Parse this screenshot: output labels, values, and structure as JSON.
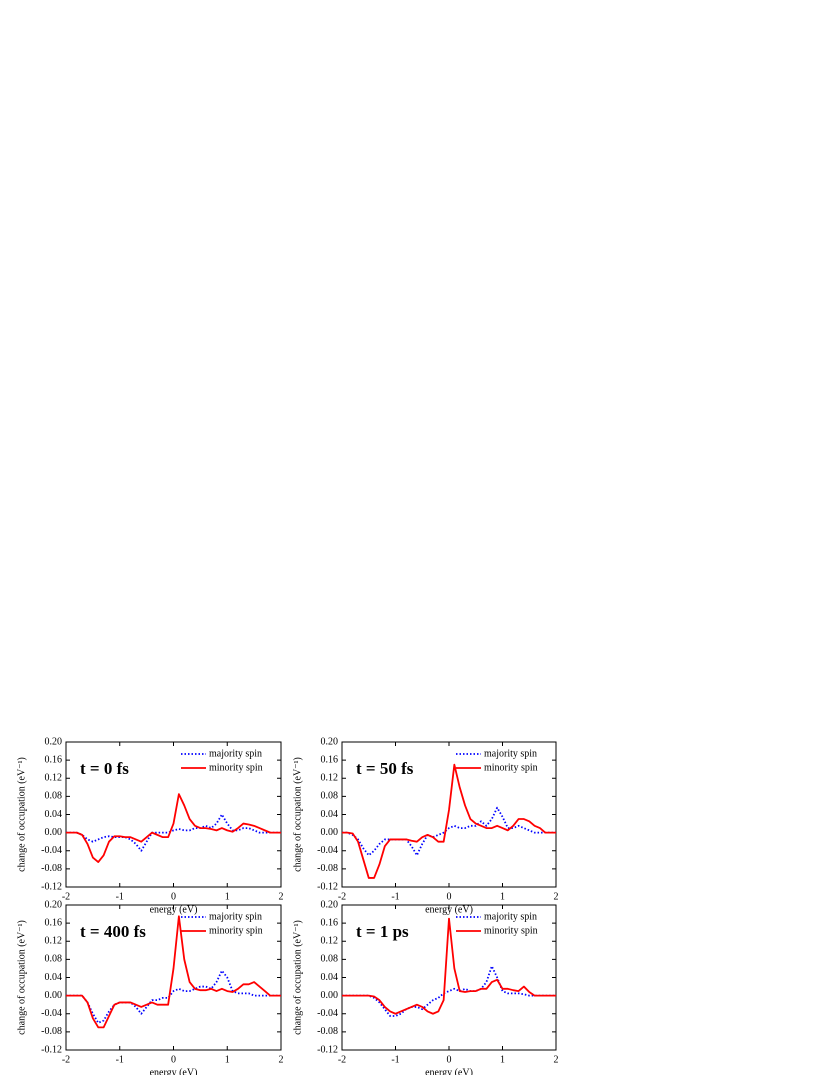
{
  "chart_data": [
    {
      "type": "line",
      "title": "t = 0 fs",
      "x_label": "energy (eV)",
      "y_label": "change of occupation (eV⁻¹)",
      "x": [
        -2,
        -1.9,
        -1.8,
        -1.7,
        -1.6,
        -1.5,
        -1.4,
        -1.3,
        -1.2,
        -1.1,
        -1,
        -0.9,
        -0.8,
        -0.7,
        -0.6,
        -0.5,
        -0.4,
        -0.3,
        -0.2,
        -0.1,
        0,
        0.1,
        0.2,
        0.3,
        0.4,
        0.5,
        0.6,
        0.7,
        0.8,
        0.9,
        1,
        1.1,
        1.2,
        1.3,
        1.4,
        1.5,
        1.6,
        1.7,
        1.8,
        1.9,
        2
      ],
      "series": [
        {
          "name": "majority spin",
          "color": "#0000ff",
          "linestyle": "dotted",
          "values": [
            0,
            0,
            0,
            -0.005,
            -0.015,
            -0.02,
            -0.015,
            -0.01,
            -0.008,
            -0.01,
            -0.01,
            -0.01,
            -0.015,
            -0.025,
            -0.04,
            -0.02,
            0,
            0,
            0,
            0,
            0.005,
            0.008,
            0.005,
            0.005,
            0.01,
            0.01,
            0.015,
            0.01,
            0.02,
            0.04,
            0.02,
            0.005,
            0.005,
            0.01,
            0.01,
            0.005,
            0,
            0,
            0,
            0,
            0
          ]
        },
        {
          "name": "minority spin",
          "color": "#ff0000",
          "linestyle": "solid",
          "values": [
            0,
            0,
            0,
            -0.005,
            -0.025,
            -0.055,
            -0.065,
            -0.05,
            -0.02,
            -0.008,
            -0.008,
            -0.01,
            -0.01,
            -0.015,
            -0.02,
            -0.01,
            0,
            -0.005,
            -0.01,
            -0.01,
            0.02,
            0.085,
            0.06,
            0.03,
            0.015,
            0.01,
            0.01,
            0.008,
            0.005,
            0.01,
            0.005,
            0.002,
            0.01,
            0.02,
            0.018,
            0.015,
            0.01,
            0.005,
            0,
            0,
            0
          ]
        }
      ],
      "xlim": [
        -2,
        2
      ],
      "xticks": [
        -2,
        -1,
        0,
        1,
        2
      ],
      "ylim": [
        -0.12,
        0.2
      ],
      "yticks": [
        {
          "value": 0.2,
          "label": "0.20"
        },
        {
          "value": 0.16,
          "label": "0.16"
        },
        {
          "value": 0.12,
          "label": "0.12"
        },
        {
          "value": 0.08,
          "label": "0.08"
        },
        {
          "value": 0.04,
          "label": "0.04"
        },
        {
          "value": 0,
          "label": "0.00"
        },
        {
          "value": -0.04,
          "label": "-0.04"
        },
        {
          "value": -0.08,
          "label": "-0.08"
        },
        {
          "value": -0.12,
          "label": "-0.12"
        }
      ],
      "legend": "upper right"
    },
    {
      "type": "line",
      "title": "t = 50 fs",
      "x_label": "energy (eV)",
      "y_label": "change of occupation (eV⁻¹)",
      "x": [
        -2,
        -1.9,
        -1.8,
        -1.7,
        -1.6,
        -1.5,
        -1.4,
        -1.3,
        -1.2,
        -1.1,
        -1,
        -0.9,
        -0.8,
        -0.7,
        -0.6,
        -0.5,
        -0.4,
        -0.3,
        -0.2,
        -0.1,
        0,
        0.1,
        0.2,
        0.3,
        0.4,
        0.5,
        0.6,
        0.7,
        0.8,
        0.9,
        1,
        1.1,
        1.2,
        1.3,
        1.4,
        1.5,
        1.6,
        1.7,
        1.8,
        1.9,
        2
      ],
      "series": [
        {
          "name": "majority spin",
          "color": "#0000ff",
          "linestyle": "dotted",
          "values": [
            0,
            0,
            -0.005,
            -0.015,
            -0.035,
            -0.05,
            -0.04,
            -0.025,
            -0.015,
            -0.015,
            -0.015,
            -0.015,
            -0.015,
            -0.03,
            -0.05,
            -0.025,
            -0.005,
            -0.01,
            -0.005,
            0,
            0.01,
            0.015,
            0.01,
            0.01,
            0.015,
            0.015,
            0.025,
            0.015,
            0.03,
            0.055,
            0.035,
            0.01,
            0.01,
            0.015,
            0.01,
            0.005,
            0,
            0,
            0,
            0,
            0
          ]
        },
        {
          "name": "minority spin",
          "color": "#ff0000",
          "linestyle": "solid",
          "values": [
            0,
            0,
            -0.002,
            -0.02,
            -0.06,
            -0.1,
            -0.1,
            -0.07,
            -0.03,
            -0.015,
            -0.015,
            -0.015,
            -0.015,
            -0.018,
            -0.02,
            -0.01,
            -0.005,
            -0.01,
            -0.02,
            -0.02,
            0.05,
            0.15,
            0.1,
            0.06,
            0.03,
            0.02,
            0.015,
            0.01,
            0.01,
            0.015,
            0.01,
            0.005,
            0.015,
            0.03,
            0.03,
            0.025,
            0.015,
            0.01,
            0,
            0,
            0
          ]
        }
      ],
      "xlim": [
        -2,
        2
      ],
      "xticks": [
        -2,
        -1,
        0,
        1,
        2
      ],
      "ylim": [
        -0.12,
        0.2
      ],
      "yticks": [
        {
          "value": 0.2,
          "label": "0.20"
        },
        {
          "value": 0.16,
          "label": "0.16"
        },
        {
          "value": 0.12,
          "label": "0.12"
        },
        {
          "value": 0.08,
          "label": "0.08"
        },
        {
          "value": 0.04,
          "label": "0.04"
        },
        {
          "value": 0,
          "label": "0.00"
        },
        {
          "value": -0.04,
          "label": "-0.04"
        },
        {
          "value": -0.08,
          "label": "-0.08"
        },
        {
          "value": -0.12,
          "label": "-0.12"
        }
      ],
      "legend": "upper right"
    },
    {
      "type": "line",
      "title": "t = 400 fs",
      "x_label": "energy (eV)",
      "y_label": "change of occupation (eV⁻¹)",
      "x": [
        -2,
        -1.9,
        -1.8,
        -1.7,
        -1.6,
        -1.5,
        -1.4,
        -1.3,
        -1.2,
        -1.1,
        -1,
        -0.9,
        -0.8,
        -0.7,
        -0.6,
        -0.5,
        -0.4,
        -0.3,
        -0.2,
        -0.1,
        0,
        0.1,
        0.2,
        0.3,
        0.4,
        0.5,
        0.6,
        0.7,
        0.8,
        0.9,
        1,
        1.1,
        1.2,
        1.3,
        1.4,
        1.5,
        1.6,
        1.7,
        1.8,
        1.9,
        2
      ],
      "series": [
        {
          "name": "majority spin",
          "color": "#0000ff",
          "linestyle": "dotted",
          "values": [
            0,
            0,
            0,
            0,
            -0.015,
            -0.04,
            -0.06,
            -0.055,
            -0.035,
            -0.02,
            -0.015,
            -0.015,
            -0.015,
            -0.025,
            -0.04,
            -0.025,
            -0.01,
            -0.01,
            -0.005,
            -0.005,
            0.01,
            0.015,
            0.01,
            0.01,
            0.015,
            0.02,
            0.02,
            0.015,
            0.03,
            0.055,
            0.04,
            0.01,
            0.005,
            0.005,
            0.005,
            0,
            0,
            0,
            0,
            0,
            0
          ]
        },
        {
          "name": "minority spin",
          "color": "#ff0000",
          "linestyle": "solid",
          "values": [
            0,
            0,
            0,
            0,
            -0.015,
            -0.05,
            -0.07,
            -0.07,
            -0.045,
            -0.02,
            -0.015,
            -0.015,
            -0.015,
            -0.02,
            -0.025,
            -0.02,
            -0.015,
            -0.02,
            -0.02,
            -0.02,
            0.06,
            0.175,
            0.08,
            0.03,
            0.015,
            0.012,
            0.012,
            0.015,
            0.01,
            0.015,
            0.01,
            0.008,
            0.015,
            0.025,
            0.025,
            0.03,
            0.02,
            0.01,
            0,
            0,
            0
          ]
        }
      ],
      "xlim": [
        -2,
        2
      ],
      "xticks": [
        -2,
        -1,
        0,
        1,
        2
      ],
      "ylim": [
        -0.12,
        0.2
      ],
      "yticks": [
        {
          "value": 0.2,
          "label": "0.20"
        },
        {
          "value": 0.16,
          "label": "0.16"
        },
        {
          "value": 0.12,
          "label": "0.12"
        },
        {
          "value": 0.08,
          "label": "0.08"
        },
        {
          "value": 0.04,
          "label": "0.04"
        },
        {
          "value": 0,
          "label": "0.00"
        },
        {
          "value": -0.04,
          "label": "-0.04"
        },
        {
          "value": -0.08,
          "label": "-0.08"
        },
        {
          "value": -0.12,
          "label": "-0.12"
        }
      ],
      "legend": "upper right"
    },
    {
      "type": "line",
      "title": "t = 1 ps",
      "x_label": "energy (eV)",
      "y_label": "change of occupation (eV⁻¹)",
      "x": [
        -2,
        -1.9,
        -1.8,
        -1.7,
        -1.6,
        -1.5,
        -1.4,
        -1.3,
        -1.2,
        -1.1,
        -1,
        -0.9,
        -0.8,
        -0.7,
        -0.6,
        -0.5,
        -0.4,
        -0.3,
        -0.2,
        -0.1,
        0,
        0.1,
        0.2,
        0.3,
        0.4,
        0.5,
        0.6,
        0.7,
        0.8,
        0.9,
        1,
        1.1,
        1.2,
        1.3,
        1.4,
        1.5,
        1.6,
        1.7,
        1.8,
        1.9,
        2
      ],
      "series": [
        {
          "name": "majority spin",
          "color": "#0000ff",
          "linestyle": "dotted",
          "values": [
            0,
            0,
            0,
            0,
            0,
            0,
            -0.005,
            -0.015,
            -0.03,
            -0.045,
            -0.045,
            -0.04,
            -0.03,
            -0.025,
            -0.025,
            -0.03,
            -0.02,
            -0.01,
            -0.005,
            0.005,
            0.01,
            0.015,
            0.01,
            0.015,
            0.01,
            0.01,
            0.015,
            0.03,
            0.065,
            0.04,
            0.01,
            0.005,
            0.005,
            0.005,
            0.003,
            0,
            0,
            0,
            0,
            0,
            0
          ]
        },
        {
          "name": "minority spin",
          "color": "#ff0000",
          "linestyle": "solid",
          "values": [
            0,
            0,
            0,
            0,
            0,
            0,
            -0.002,
            -0.01,
            -0.025,
            -0.035,
            -0.04,
            -0.035,
            -0.03,
            -0.025,
            -0.02,
            -0.025,
            -0.035,
            -0.04,
            -0.035,
            -0.01,
            0.17,
            0.06,
            0.01,
            0.008,
            0.01,
            0.01,
            0.015,
            0.015,
            0.03,
            0.035,
            0.015,
            0.015,
            0.012,
            0.01,
            0.02,
            0.008,
            0,
            0,
            0,
            0,
            0
          ]
        }
      ],
      "xlim": [
        -2,
        2
      ],
      "xticks": [
        -2,
        -1,
        0,
        1,
        2
      ],
      "ylim": [
        -0.12,
        0.2
      ],
      "yticks": [
        {
          "value": 0.2,
          "label": "0.20"
        },
        {
          "value": 0.16,
          "label": "0.16"
        },
        {
          "value": 0.12,
          "label": "0.12"
        },
        {
          "value": 0.08,
          "label": "0.08"
        },
        {
          "value": 0.04,
          "label": "0.04"
        },
        {
          "value": 0,
          "label": "0.00"
        },
        {
          "value": -0.04,
          "label": "-0.04"
        },
        {
          "value": -0.08,
          "label": "-0.08"
        },
        {
          "value": -0.12,
          "label": "-0.12"
        }
      ],
      "legend": "upper right"
    }
  ]
}
